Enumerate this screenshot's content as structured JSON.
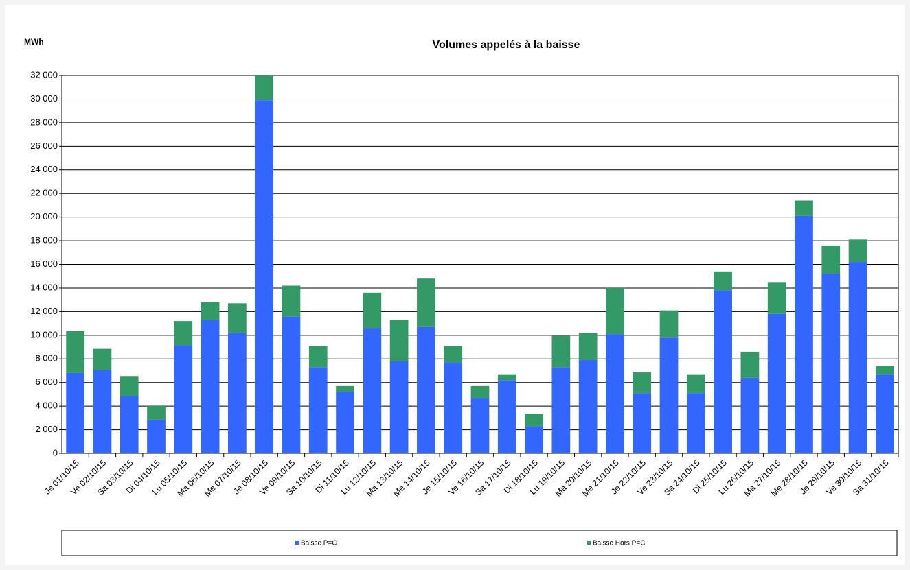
{
  "chart_data": {
    "type": "stacked_bar",
    "title": "Volumes appelés à la baisse",
    "y_axis_label": "MWh",
    "categories": [
      "Je 01/10/15",
      "Ve 02/10/15",
      "Sa 03/10/15",
      "Di 04/10/15",
      "Lu 05/10/15",
      "Ma 06/10/15",
      "Me 07/10/15",
      "Je 08/10/15",
      "Ve 09/10/15",
      "Sa 10/10/15",
      "Di 11/10/15",
      "Lu 12/10/15",
      "Ma 13/10/15",
      "Me 14/10/15",
      "Je 15/10/15",
      "Ve 16/10/15",
      "Sa 17/10/15",
      "Di 18/10/15",
      "Lu 19/10/15",
      "Ma 20/10/15",
      "Me 21/10/15",
      "Je 22/10/15",
      "Ve 23/10/15",
      "Sa 24/10/15",
      "Di 25/10/15",
      "Lu 26/10/15",
      "Ma 27/10/15",
      "Me 28/10/15",
      "Je 29/10/15",
      "Ve 30/10/15",
      "Sa 31/10/15"
    ],
    "series": [
      {
        "name": "Baisse P=C",
        "color": "#3366ff",
        "values": [
          6800,
          7050,
          4850,
          2850,
          9150,
          11300,
          10200,
          29900,
          11600,
          7300,
          5200,
          10600,
          7800,
          10700,
          7700,
          4700,
          6200,
          2300,
          7300,
          7900,
          10100,
          5100,
          9800,
          5100,
          13800,
          6400,
          11800,
          20100,
          15200,
          16200,
          6700
        ]
      },
      {
        "name": "Baisse Hors P=C",
        "color": "#339966",
        "values": [
          3550,
          1800,
          1700,
          1200,
          2050,
          1500,
          2500,
          2100,
          2600,
          1800,
          500,
          3000,
          3500,
          4100,
          1400,
          1000,
          500,
          1050,
          2650,
          2300,
          3900,
          1750,
          2300,
          1600,
          1600,
          2200,
          2700,
          1300,
          2400,
          1900,
          700
        ]
      }
    ],
    "ylim": [
      0,
      32000
    ],
    "yticks": [
      0,
      {
        "value": 2000,
        "label": "2 000"
      },
      {
        "value": 4000,
        "label": "4 000"
      },
      {
        "value": 6000,
        "label": "6 000"
      },
      {
        "value": 8000,
        "label": "8 000"
      },
      {
        "value": 10000,
        "label": "10 000"
      },
      {
        "value": 12000,
        "label": "12 000"
      },
      {
        "value": 14000,
        "label": "14 000"
      },
      {
        "value": 16000,
        "label": "16 000"
      },
      {
        "value": 18000,
        "label": "18 000"
      },
      {
        "value": 20000,
        "label": "20 000"
      },
      {
        "value": 22000,
        "label": "22 000"
      },
      {
        "value": 24000,
        "label": "24 000"
      },
      {
        "value": 26000,
        "label": "26 000"
      },
      {
        "value": 28000,
        "label": "28 000"
      },
      {
        "value": 30000,
        "label": "30 000"
      },
      {
        "value": 32000,
        "label": "32 000"
      }
    ],
    "grid": true,
    "legend": "bottom"
  }
}
